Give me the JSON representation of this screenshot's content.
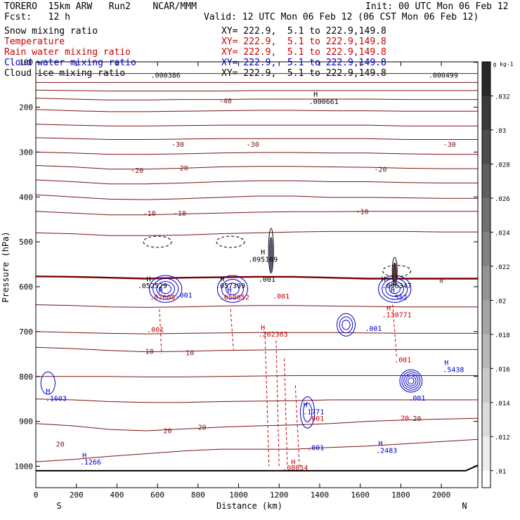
{
  "header": {
    "title": "TORERO  15km ARW   Run2    NCAR/MMM",
    "init": "Init: 00 UTC Mon 06 Feb 12",
    "fcst": "Fcst:   12 h",
    "valid": "Valid: 12 UTC Mon 06 Feb 12 (06 CST Mon 06 Feb 12)",
    "fields": [
      {
        "label": "Snow mixing ratio",
        "color": "#000000"
      },
      {
        "label": "Temperature",
        "color": "#cc0000"
      },
      {
        "label": "Rain water mixing ratio",
        "color": "#cc0000"
      },
      {
        "label": "Cloud water mixing ratio",
        "color": "#0000cc"
      },
      {
        "label": "Cloud ice mixing ratio",
        "color": "#000000"
      }
    ],
    "xy_line": "XY= 222.9,  5.1 to 222.9,149.8"
  },
  "chart_data": {
    "type": "contour-cross-section",
    "xlabel": "Distance (km)",
    "ylabel": "Pressure (hPa)",
    "xlim": [
      0,
      2180
    ],
    "ylim": [
      1050,
      100
    ],
    "xticks": [
      0,
      200,
      400,
      600,
      800,
      1000,
      1200,
      1400,
      1600,
      1800,
      2000
    ],
    "yticks": [
      100,
      200,
      300,
      400,
      500,
      600,
      700,
      800,
      900,
      1000
    ],
    "x_end_labels": {
      "left": "S",
      "right": "N"
    },
    "colorbar": {
      "unit": "g kg-1",
      "ticks": [
        ".032",
        ".03",
        ".028",
        ".026",
        ".024",
        ".022",
        ".02",
        ".018",
        ".016",
        ".014",
        ".012",
        ".01"
      ]
    },
    "temperature_labels": [
      {
        "x": 935,
        "p": 185,
        "text": "-40"
      },
      {
        "x": 700,
        "p": 282,
        "text": "-30"
      },
      {
        "x": 1070,
        "p": 282,
        "text": "-30"
      },
      {
        "x": 2040,
        "p": 282,
        "text": "-30"
      },
      {
        "x": 500,
        "p": 340,
        "text": "-20"
      },
      {
        "x": 720,
        "p": 335,
        "text": "-20"
      },
      {
        "x": 1700,
        "p": 338,
        "text": "-20"
      },
      {
        "x": 560,
        "p": 436,
        "text": "-10"
      },
      {
        "x": 710,
        "p": 436,
        "text": "-10"
      },
      {
        "x": 1610,
        "p": 432,
        "text": "-10"
      },
      {
        "x": 2000,
        "p": 585,
        "text": "0"
      },
      {
        "x": 560,
        "p": 743,
        "text": "10"
      },
      {
        "x": 760,
        "p": 746,
        "text": "10"
      },
      {
        "x": 1880,
        "p": 893,
        "text": "20"
      },
      {
        "x": 650,
        "p": 920,
        "text": "20"
      },
      {
        "x": 820,
        "p": 912,
        "text": "20"
      },
      {
        "x": 120,
        "p": 950,
        "text": "20"
      }
    ],
    "extrema_labels": [
      {
        "x": 640,
        "p": 128,
        "text": ".000386",
        "color": "#000000"
      },
      {
        "x": 1380,
        "p": 170,
        "text": "H",
        "color": "#000000"
      },
      {
        "x": 1420,
        "p": 187,
        "text": ".000661",
        "color": "#000000"
      },
      {
        "x": 2010,
        "p": 128,
        "text": ".000499",
        "color": "#000000"
      },
      {
        "x": 1120,
        "p": 522,
        "text": "H",
        "color": "#000000"
      },
      {
        "x": 1120,
        "p": 538,
        "text": ".095169",
        "color": "#000000"
      },
      {
        "x": 1140,
        "p": 583,
        "text": ".001",
        "color": "#000000"
      },
      {
        "x": 557,
        "p": 582,
        "text": "H",
        "color": "#000000"
      },
      {
        "x": 575,
        "p": 597,
        "text": ".052529",
        "color": "#000000"
      },
      {
        "x": 920,
        "p": 582,
        "text": "H",
        "color": "#000000"
      },
      {
        "x": 960,
        "p": 597,
        "text": ".057399",
        "color": "#000000"
      },
      {
        "x": 1715,
        "p": 582,
        "text": "H",
        "color": "#000000"
      },
      {
        "x": 1780,
        "p": 597,
        "text": ".096347",
        "color": "#000000"
      },
      {
        "x": 615,
        "p": 607,
        "text": "H",
        "color": "#0000cc"
      },
      {
        "x": 625,
        "p": 623,
        "text": ".07608",
        "color": "#cc0000"
      },
      {
        "x": 955,
        "p": 607,
        "text": "H",
        "color": "#0000cc"
      },
      {
        "x": 980,
        "p": 623,
        "text": ".050052",
        "color": "#cc0000"
      },
      {
        "x": 730,
        "p": 618,
        "text": ".001",
        "color": "#0000cc"
      },
      {
        "x": 1210,
        "p": 620,
        "text": ".001",
        "color": "#cc0000"
      },
      {
        "x": 1760,
        "p": 607,
        "text": "H",
        "color": "#0000cc"
      },
      {
        "x": 1790,
        "p": 623,
        "text": ".552",
        "color": "#0000cc"
      },
      {
        "x": 1740,
        "p": 647,
        "text": "H",
        "color": "#cc0000"
      },
      {
        "x": 1780,
        "p": 662,
        "text": ".130771",
        "color": "#cc0000"
      },
      {
        "x": 1120,
        "p": 690,
        "text": "H",
        "color": "#cc0000"
      },
      {
        "x": 1170,
        "p": 705,
        "text": ".202363",
        "color": "#cc0000"
      },
      {
        "x": 590,
        "p": 695,
        "text": ".001",
        "color": "#cc0000"
      },
      {
        "x": 1665,
        "p": 692,
        "text": ".001",
        "color": "#0000cc"
      },
      {
        "x": 1810,
        "p": 762,
        "text": ".001",
        "color": "#cc0000"
      },
      {
        "x": 2025,
        "p": 768,
        "text": "H",
        "color": "#0000cc"
      },
      {
        "x": 2060,
        "p": 784,
        "text": ".5438",
        "color": "#0000cc"
      },
      {
        "x": 1880,
        "p": 847,
        "text": ".001",
        "color": "#0000cc"
      },
      {
        "x": 60,
        "p": 832,
        "text": "H",
        "color": "#0000cc"
      },
      {
        "x": 100,
        "p": 848,
        "text": ".1603",
        "color": "#0000cc"
      },
      {
        "x": 1330,
        "p": 862,
        "text": "H",
        "color": "#0000cc"
      },
      {
        "x": 1370,
        "p": 878,
        "text": ".1771",
        "color": "#0000cc"
      },
      {
        "x": 1380,
        "p": 893,
        "text": ".001",
        "color": "#cc0000"
      },
      {
        "x": 1820,
        "p": 892,
        "text": "20",
        "color": "#cc0000"
      },
      {
        "x": 1380,
        "p": 958,
        "text": ".001",
        "color": "#0000cc"
      },
      {
        "x": 1700,
        "p": 948,
        "text": "H",
        "color": "#0000cc"
      },
      {
        "x": 1730,
        "p": 964,
        "text": ".2483",
        "color": "#0000cc"
      },
      {
        "x": 240,
        "p": 975,
        "text": "H",
        "color": "#0000cc"
      },
      {
        "x": 270,
        "p": 990,
        "text": ".1266",
        "color": "#0000cc"
      },
      {
        "x": 1270,
        "p": 990,
        "text": "H",
        "color": "#cc0000"
      },
      {
        "x": 1280,
        "p": 1002,
        "text": ".08054",
        "color": "#cc0000"
      }
    ],
    "temperature_isotherms": [
      {
        "label": "-40",
        "p": [
          125,
          125,
          125,
          125,
          125,
          125,
          125,
          125,
          125,
          125,
          125,
          125,
          125
        ]
      },
      {
        "label": "",
        "p": [
          145,
          145,
          145,
          145,
          145,
          145,
          145,
          145,
          145,
          145,
          145,
          145,
          145
        ]
      },
      {
        "label": "",
        "p": [
          162,
          163,
          164,
          164,
          164,
          164,
          163,
          163,
          163,
          163,
          163,
          163,
          163
        ]
      },
      {
        "label": "",
        "p": [
          180,
          182,
          184,
          184,
          183,
          183,
          182,
          182,
          182,
          182,
          183,
          183,
          183
        ]
      },
      {
        "label": "",
        "p": [
          205,
          208,
          210,
          210,
          209,
          208,
          207,
          207,
          208,
          208,
          209,
          209,
          209
        ]
      },
      {
        "label": "",
        "p": [
          238,
          240,
          242,
          242,
          241,
          240,
          240,
          240,
          240,
          240,
          242,
          242,
          242
        ]
      },
      {
        "label": "",
        "p": [
          268,
          270,
          272,
          272,
          271,
          270,
          270,
          270,
          270,
          270,
          272,
          272,
          272
        ]
      },
      {
        "label": "",
        "p": [
          300,
          302,
          305,
          305,
          304,
          302,
          301,
          301,
          302,
          302,
          304,
          305,
          305
        ]
      },
      {
        "label": "",
        "p": [
          330,
          333,
          338,
          338,
          336,
          333,
          332,
          332,
          333,
          334,
          336,
          337,
          337
        ]
      },
      {
        "label": "",
        "p": [
          362,
          366,
          371,
          371,
          369,
          366,
          364,
          364,
          366,
          366,
          368,
          369,
          369
        ]
      },
      {
        "label": "",
        "p": [
          395,
          400,
          405,
          406,
          404,
          401,
          398,
          398,
          401,
          401,
          402,
          403,
          403
        ]
      },
      {
        "label": "",
        "p": [
          432,
          436,
          440,
          440,
          438,
          436,
          434,
          433,
          433,
          432,
          432,
          432,
          432
        ]
      },
      {
        "label": "",
        "p": [
          480,
          482,
          486,
          486,
          485,
          482,
          480,
          478,
          477,
          477,
          477,
          478,
          478
        ]
      },
      {
        "label": "0",
        "p": [
          577,
          578,
          580,
          582,
          580,
          579,
          578,
          578,
          580,
          582,
          582,
          582,
          582
        ]
      },
      {
        "label": "",
        "p": [
          640,
          642,
          645,
          646,
          645,
          643,
          642,
          642,
          643,
          644,
          645,
          645,
          645
        ]
      },
      {
        "label": "",
        "p": [
          700,
          702,
          704,
          705,
          704,
          703,
          702,
          702,
          702,
          703,
          704,
          704,
          704
        ]
      },
      {
        "label": "10",
        "p": [
          735,
          738,
          742,
          745,
          744,
          742,
          741,
          740,
          740,
          740,
          740,
          740,
          740
        ]
      },
      {
        "label": "",
        "p": [
          800,
          800,
          800,
          801,
          801,
          800,
          799,
          798,
          798,
          798,
          798,
          798,
          798
        ]
      },
      {
        "label": "",
        "p": [
          850,
          852,
          856,
          858,
          858,
          856,
          855,
          854,
          852,
          852,
          852,
          852,
          852
        ]
      },
      {
        "label": "20",
        "p": [
          905,
          910,
          918,
          921,
          917,
          913,
          910,
          908,
          905,
          900,
          897,
          895,
          893
        ]
      },
      {
        "label": "",
        "p": [
          990,
          985,
          978,
          972,
          966,
          962,
          962,
          962,
          958,
          955,
          950,
          945,
          940
        ]
      }
    ]
  }
}
